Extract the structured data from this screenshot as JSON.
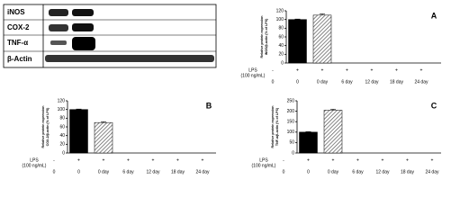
{
  "blot": {
    "labels": [
      "iNOS",
      "COX-2",
      "TNF-α",
      "β-Actin"
    ]
  },
  "chart_data": [
    {
      "type": "bar",
      "panel_label": "A",
      "ylabel": [
        "Relative protein expression",
        "iNOS/β-actin (% of LPS)"
      ],
      "x_label": "LPS",
      "x_label_unit": "(100 ng/mL)",
      "lps": [
        "-",
        "+",
        "+",
        "+",
        "+",
        "+",
        "+"
      ],
      "categories": [
        "0",
        "0",
        "0 day",
        "6 day",
        "12 day",
        "18 day",
        "24 day"
      ],
      "values": [
        null,
        100,
        110,
        null,
        null,
        null,
        null
      ],
      "errors": [
        null,
        1,
        3,
        null,
        null,
        null,
        null
      ],
      "colors": [
        "#000000",
        "#000000",
        "#ffffff",
        "#ffffff",
        "#ffffff",
        "#ffffff",
        "#ffffff"
      ],
      "hatch": [
        false,
        false,
        true,
        true,
        true,
        true,
        true
      ],
      "ylim": [
        0,
        120
      ],
      "yticks": [
        0,
        20,
        40,
        60,
        80,
        100,
        120
      ]
    },
    {
      "type": "bar",
      "panel_label": "B",
      "ylabel": [
        "Relative protein expression",
        "COX-2/β-actin (% of LPS)"
      ],
      "x_label": "LPS",
      "x_label_unit": "(100 ng/mL)",
      "lps": [
        "-",
        "+",
        "+",
        "+",
        "+",
        "+",
        "+"
      ],
      "categories": [
        "0",
        "0",
        "0 day",
        "6 day",
        "12 day",
        "18 day",
        "24 day"
      ],
      "values": [
        null,
        100,
        70,
        null,
        null,
        null,
        null
      ],
      "errors": [
        null,
        1,
        2,
        null,
        null,
        null,
        null
      ],
      "colors": [
        "#000000",
        "#000000",
        "#ffffff",
        "#ffffff",
        "#ffffff",
        "#ffffff",
        "#ffffff"
      ],
      "hatch": [
        false,
        false,
        true,
        true,
        true,
        true,
        true
      ],
      "ylim": [
        0,
        120
      ],
      "yticks": [
        0,
        20,
        40,
        60,
        80,
        100,
        120
      ]
    },
    {
      "type": "bar",
      "panel_label": "C",
      "ylabel": [
        "Relative protein expression",
        "TNF-α/β-actin (% of LPS)"
      ],
      "x_label": "LPS",
      "x_label_unit": "(100 ng/mL)",
      "lps": [
        "-",
        "+",
        "+",
        "+",
        "+",
        "+",
        "+"
      ],
      "categories": [
        "0",
        "0",
        "0 day",
        "6 day",
        "12 day",
        "18 day",
        "24 day"
      ],
      "values": [
        null,
        100,
        205,
        null,
        null,
        null,
        null
      ],
      "errors": [
        null,
        2,
        5,
        null,
        null,
        null,
        null
      ],
      "colors": [
        "#000000",
        "#000000",
        "#ffffff",
        "#ffffff",
        "#ffffff",
        "#ffffff",
        "#ffffff"
      ],
      "hatch": [
        false,
        false,
        true,
        true,
        true,
        true,
        true
      ],
      "ylim": [
        0,
        250
      ],
      "yticks": [
        0,
        50,
        100,
        150,
        200,
        250
      ]
    }
  ]
}
